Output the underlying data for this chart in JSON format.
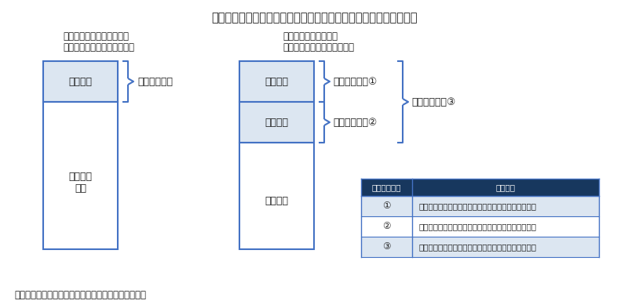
{
  "title": "図１　費用対効果評価制度における価格調整の対象範囲のイメージ",
  "left_subtitle_line1": "類似薬効比較方式における",
  "left_subtitle_line2": "価格調整対象範囲のイメージ",
  "right_subtitle_line1": "原価計算方式における",
  "right_subtitle_line2": "価格調整対象範囲のイメージ",
  "source": "出所：中医協資料をもとに医薬産業政策研究所が作成",
  "left_box_top_label": "加算部分",
  "left_box_bottom_label": "類似薬の\n価格",
  "left_brace_label": "価格調整部分",
  "right_box_top_label": "加算部分",
  "right_box_mid_label": "営業利益",
  "right_box_bottom_label": "製品原価",
  "right_brace1_label": "価格調整部分①",
  "right_brace2_label": "価格調整部分②",
  "right_brace3_label": "価格調整部分③",
  "table_header_col1": "価格調整部分",
  "table_header_col2": "品目要件",
  "table_rows": [
    [
      "①",
      "原価計算方式における開示度が高く、加算のある品目"
    ],
    [
      "②",
      "原価計算方式における開示度が低く、加算のない品目"
    ],
    [
      "③",
      "原価計算方式における開示度が低く、加算のある品目"
    ]
  ],
  "bg_color": "#ffffff",
  "box_fill_top": "#dce6f1",
  "box_fill_bottom": "#ffffff",
  "box_border": "#4472c4",
  "table_header_bg": "#17375e",
  "table_header_fg": "#ffffff",
  "table_row_bg_odd": "#dce6f1",
  "table_row_bg_even": "#ffffff",
  "table_border": "#4472c4",
  "brace_color": "#4472c4",
  "text_color": "#1f1f1f",
  "title_color": "#1f1f1f"
}
